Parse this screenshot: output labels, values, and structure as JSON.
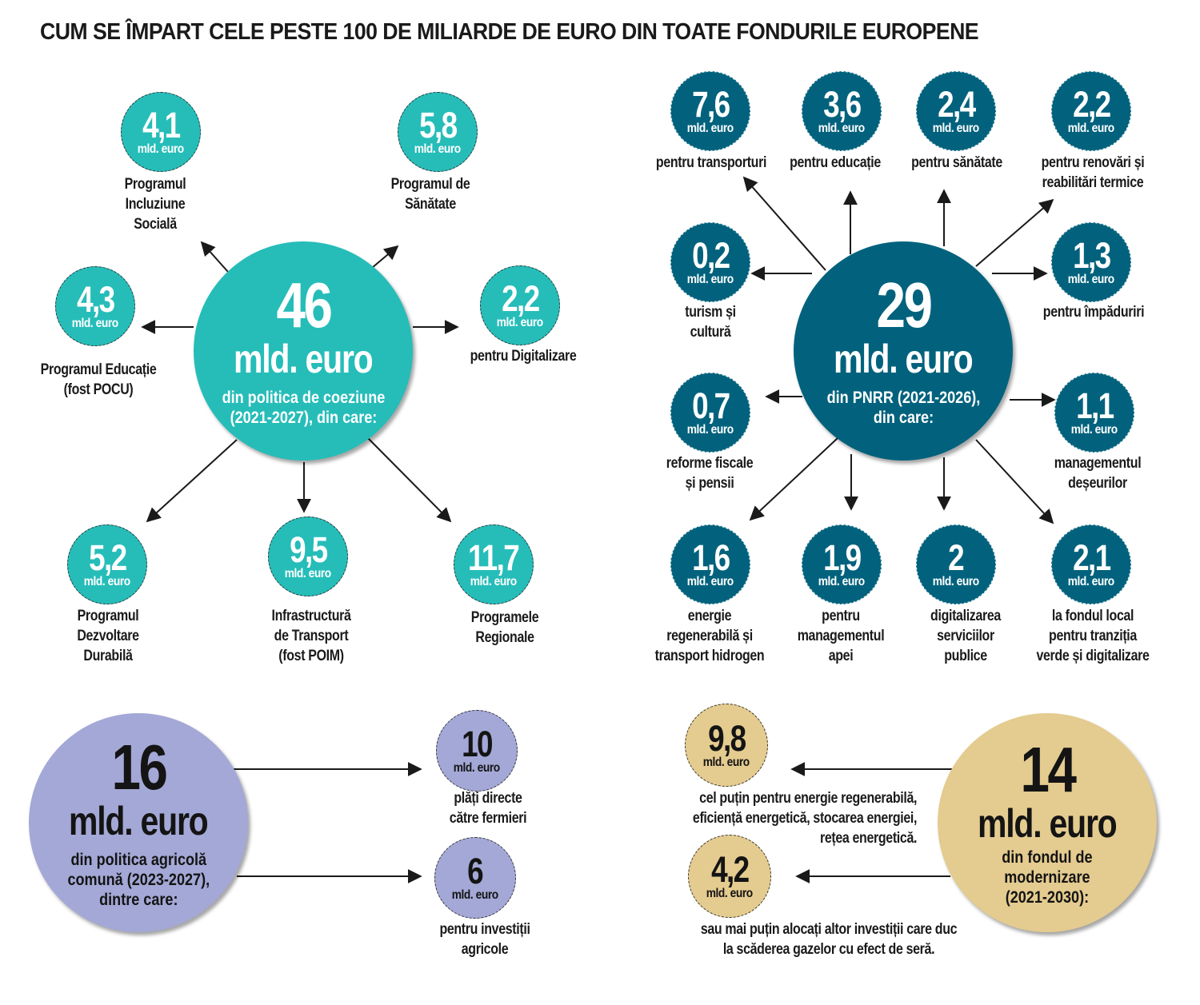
{
  "title": "CUM SE ÎMPART CELE PESTE 100 DE MILIARDE DE EURO DIN TOATE FONDURILE EUROPENE",
  "unit": "mld. euro",
  "colors": {
    "cohesion": "#26bdb9",
    "pnrr": "#02627d",
    "agri": "#a3a8d6",
    "modern": "#e4cb8f"
  },
  "cohesion": {
    "total": "46",
    "desc": [
      "din politica de coeziune",
      "(2021-2027), din care:"
    ],
    "items": [
      {
        "value": "4,1",
        "label": [
          "Programul",
          "Incluziune",
          "Socială"
        ]
      },
      {
        "value": "5,8",
        "label": [
          "Programul de",
          "Sănătate"
        ]
      },
      {
        "value": "4,3",
        "label": [
          "Programul Educație",
          "(fost POCU)"
        ]
      },
      {
        "value": "2,2",
        "label": [
          "pentru Digitalizare"
        ]
      },
      {
        "value": "5,2",
        "label": [
          "Programul",
          "Dezvoltare",
          "Durabilă"
        ]
      },
      {
        "value": "9,5",
        "label": [
          "Infrastructură",
          "de Transport",
          "(fost POIM)"
        ]
      },
      {
        "value": "11,7",
        "label": [
          "Programele",
          "Regionale"
        ]
      }
    ]
  },
  "pnrr": {
    "total": "29",
    "desc": [
      "din PNRR (2021-2026),",
      "din care:"
    ],
    "items": [
      {
        "value": "7,6",
        "label": [
          "pentru transporturi"
        ]
      },
      {
        "value": "3,6",
        "label": [
          "pentru educație"
        ]
      },
      {
        "value": "2,4",
        "label": [
          "pentru sănătate"
        ]
      },
      {
        "value": "2,2",
        "label": [
          "pentru renovări și",
          "reabilitări termice"
        ]
      },
      {
        "value": "0,2",
        "label": [
          "turism și",
          "cultură"
        ]
      },
      {
        "value": "1,3",
        "label": [
          "pentru împăduriri"
        ]
      },
      {
        "value": "0,7",
        "label": [
          "reforme fiscale",
          "și pensii"
        ]
      },
      {
        "value": "1,1",
        "label": [
          "managementul",
          "deșeurilor"
        ]
      },
      {
        "value": "1,6",
        "label": [
          "energie",
          "regenerabilă și",
          "transport hidrogen"
        ]
      },
      {
        "value": "1,9",
        "label": [
          "pentru",
          "managementul",
          "apei"
        ]
      },
      {
        "value": "2",
        "label": [
          "digitalizarea",
          "serviciilor",
          "publice"
        ]
      },
      {
        "value": "2,1",
        "label": [
          "la fondul local",
          "pentru tranziția",
          "verde și digitalizare"
        ]
      }
    ]
  },
  "agri": {
    "total": "16",
    "desc": [
      "din politica agricolă",
      "comună (2023-2027),",
      "dintre care:"
    ],
    "items": [
      {
        "value": "10",
        "label": [
          "plăți directe",
          "către fermieri"
        ]
      },
      {
        "value": "6",
        "label": [
          "pentru investiții",
          "agricole"
        ]
      }
    ]
  },
  "modern": {
    "total": "14",
    "desc": [
      "din fondul de",
      "modernizare",
      "(2021-2030):"
    ],
    "items": [
      {
        "value": "9,8",
        "label": [
          "cel puțin pentru energie regenerabilă,",
          "eficiență energetică, stocarea energiei,",
          "rețea energetică."
        ]
      },
      {
        "value": "4,2",
        "label": [
          "sau mai puțin alocați altor investiții care duc",
          "la scăderea gazelor cu efect de seră."
        ]
      }
    ]
  }
}
